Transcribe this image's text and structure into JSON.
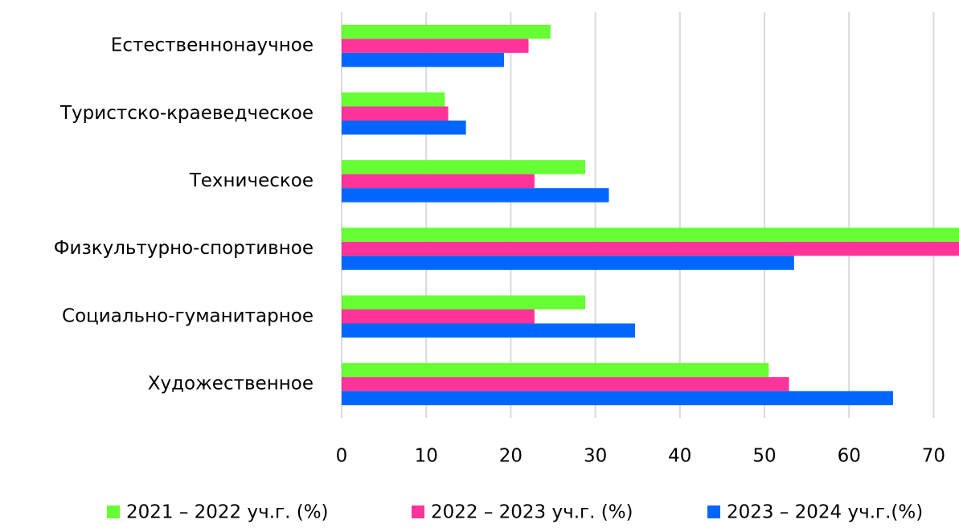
{
  "chart_data": {
    "type": "hbar",
    "categories": [
      "Естественнонаучное",
      "Туристско-краеведческое",
      "Техническое",
      "Физкультурно-спортивное",
      "Социально-гуманитарное",
      "Художественное"
    ],
    "series": [
      {
        "name": "2021 – 2022 уч.г. (%)",
        "color": "#66ff33",
        "values": [
          24.7,
          12.2,
          28.8,
          73,
          28.8,
          50.5
        ]
      },
      {
        "name": "2022 – 2023 уч.г. (%)",
        "color": "#ff3399",
        "values": [
          22.1,
          12.6,
          22.8,
          73,
          22.8,
          52.9
        ]
      },
      {
        "name": "2023 – 2024 уч.г.(%)",
        "color": "#0066ff",
        "values": [
          19.2,
          14.7,
          31.6,
          53.5,
          34.7,
          65.2
        ]
      }
    ],
    "xlim": [
      0,
      73
    ],
    "xticks": [
      0,
      10,
      20,
      30,
      40,
      50,
      60,
      70
    ],
    "grid": true,
    "legend": "bottom"
  }
}
